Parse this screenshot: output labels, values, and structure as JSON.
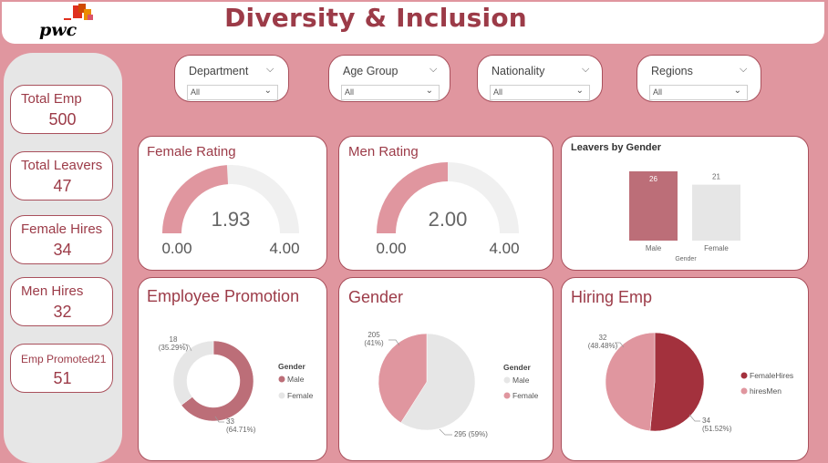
{
  "header": {
    "title": "Diversity & Inclusion",
    "logo_text": "pwc"
  },
  "kpis": [
    {
      "label": "Total Emp",
      "value": "500"
    },
    {
      "label": "Total Leavers",
      "value": "47"
    },
    {
      "label": "Female Hires",
      "value": "34"
    },
    {
      "label": "Men Hires",
      "value": "32"
    },
    {
      "label": "Emp Promoted21",
      "value": "51"
    }
  ],
  "filters": [
    {
      "label": "Department",
      "value": "All"
    },
    {
      "label": "Age Group",
      "value": "All"
    },
    {
      "label": "Nationality",
      "value": "All"
    },
    {
      "label": "Regions",
      "value": "All"
    }
  ],
  "colors": {
    "accent": "#9c3b48",
    "pink": "#e0969f",
    "rose": "#bc6e78",
    "dark": "#a3313d",
    "grey": "#e6e6e6"
  },
  "chart_data": [
    {
      "type": "gauge",
      "title": "Female Rating",
      "value": 1.93,
      "value_label": "1.93",
      "min": 0,
      "max": 4,
      "min_label": "0.00",
      "max_label": "4.00"
    },
    {
      "type": "gauge",
      "title": "Men Rating",
      "value": 2.0,
      "value_label": "2.00",
      "min": 0,
      "max": 4,
      "min_label": "0.00",
      "max_label": "4.00"
    },
    {
      "type": "bar",
      "title": "Leavers by Gender",
      "categories": [
        "Male",
        "Female"
      ],
      "values": [
        26,
        21
      ],
      "value_labels": [
        "26",
        "21"
      ],
      "xlabel": "Gender"
    },
    {
      "type": "pie",
      "donut": true,
      "title": "Employee Promotion",
      "legend_title": "Gender",
      "legend_position": "right",
      "slices": [
        {
          "name": "Male",
          "value": 33,
          "label": "33",
          "pct": "(64.71%)",
          "color": "#bc6e78"
        },
        {
          "name": "Female",
          "value": 18,
          "label": "18",
          "pct": "(35.29%)",
          "color": "#e6e6e6"
        }
      ]
    },
    {
      "type": "pie",
      "title": "Gender",
      "legend_title": "Gender",
      "legend_position": "right",
      "slices": [
        {
          "name": "Male",
          "value": 295,
          "label": "295 (59%)",
          "color": "#e6e6e6"
        },
        {
          "name": "Female",
          "value": 205,
          "label": "205",
          "pct": "(41%)",
          "color": "#e0969f"
        }
      ]
    },
    {
      "type": "pie",
      "title": "Hiring Emp",
      "legend_position": "right",
      "slices": [
        {
          "name": "FemaleHires",
          "value": 34,
          "label": "34",
          "pct": "(51.52%)",
          "color": "#a3313d"
        },
        {
          "name": "hiresMen",
          "value": 32,
          "label": "32",
          "pct": "(48.48%)",
          "color": "#e0969f"
        }
      ]
    }
  ]
}
